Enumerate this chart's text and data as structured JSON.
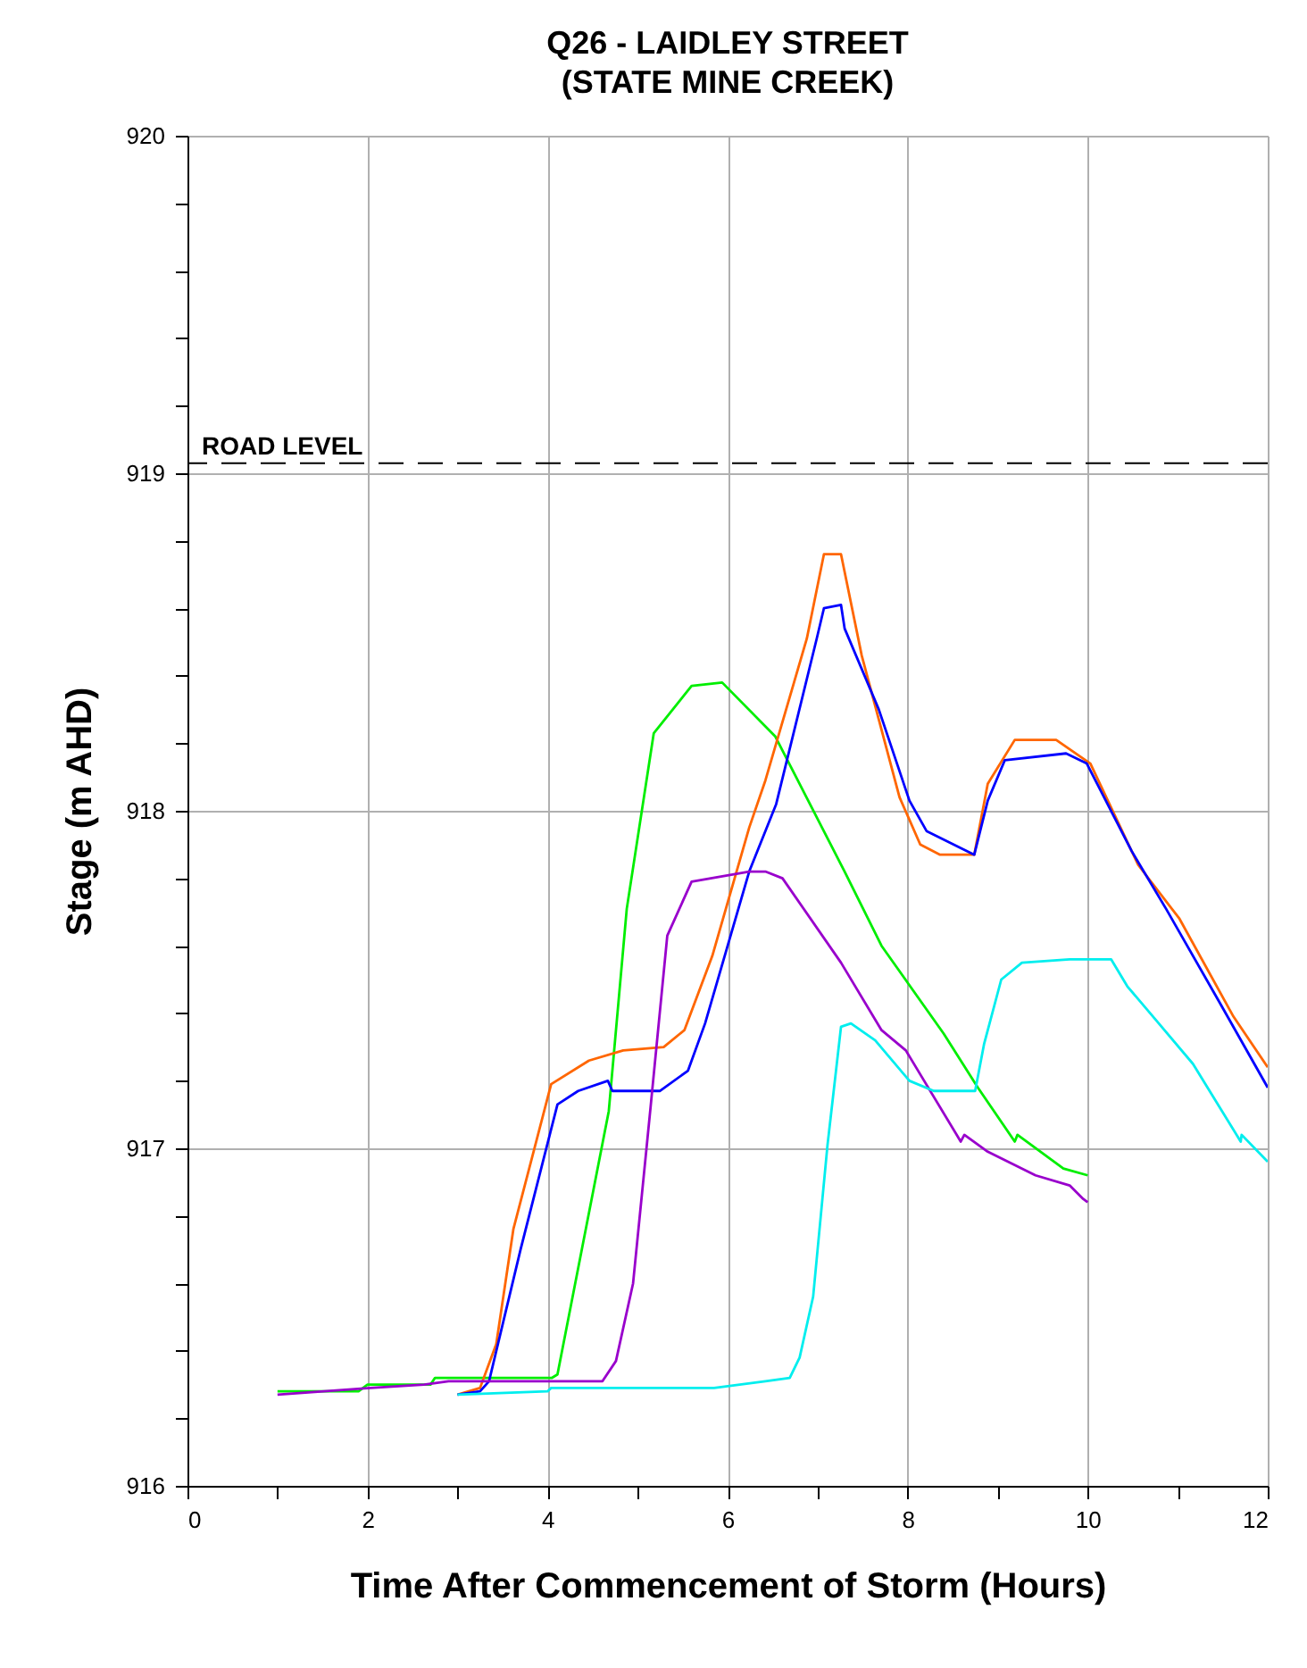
{
  "chart_data": {
    "type": "line",
    "title": "Q26 - LAIDLEY STREET\n(STATE MINE CREEK)",
    "xlabel": "Time After Commencement of Storm (Hours)",
    "ylabel": "Stage (m AHD)",
    "xlim": [
      0,
      12
    ],
    "ylim": [
      916,
      920
    ],
    "xticks": [
      0,
      {
        "value": 1,
        "label": null
      },
      2,
      {
        "value": 3,
        "label": null
      },
      4,
      {
        "value": 5,
        "label": null
      },
      6,
      {
        "value": 7,
        "label": null
      },
      8,
      {
        "value": 9,
        "label": null
      },
      10,
      {
        "value": 11,
        "label": null
      },
      12
    ],
    "yticks": [
      916,
      {
        "value": 916.2,
        "label": null
      },
      {
        "value": 916.4,
        "label": null
      },
      {
        "value": 916.6,
        "label": null
      },
      {
        "value": 916.8,
        "label": null
      },
      917,
      {
        "value": 917.2,
        "label": null
      },
      {
        "value": 917.4,
        "label": null
      },
      {
        "value": 917.6,
        "label": null
      },
      {
        "value": 917.8,
        "label": null
      },
      918,
      {
        "value": 918.2,
        "label": null
      },
      {
        "value": 918.4,
        "label": null
      },
      {
        "value": 918.6,
        "label": null
      },
      {
        "value": 918.8,
        "label": null
      },
      919,
      {
        "value": 919.2,
        "label": null
      },
      {
        "value": 919.4,
        "label": null
      },
      {
        "value": 919.6,
        "label": null
      },
      {
        "value": 919.8,
        "label": null
      },
      920
    ],
    "grid": true,
    "ref_lines": [
      {
        "axis": "y",
        "value": 919.03,
        "label": "ROAD LEVEL",
        "color": "#000000",
        "line_style": "dashed"
      }
    ],
    "series": [
      {
        "color": "#00ee00",
        "x": [
          1,
          1.9,
          2,
          2.7,
          2.75,
          4.05,
          4.11,
          4.68,
          4.88,
          5.18,
          5.6,
          5.94,
          6.53,
          7.3,
          7.71,
          8.4,
          8.78,
          9.19,
          9.22,
          9.73,
          10
        ],
        "values": [
          916.28,
          916.28,
          916.3,
          916.3,
          916.32,
          916.32,
          916.33,
          917.11,
          917.71,
          918.23,
          918.37,
          918.38,
          918.22,
          917.82,
          917.6,
          917.34,
          917.18,
          917.02,
          917.04,
          916.94,
          916.92
        ]
      },
      {
        "color": "#ff6600",
        "x": [
          3,
          3.25,
          3.43,
          3.62,
          4.04,
          4.46,
          4.84,
          5.29,
          5.52,
          5.83,
          6.24,
          6.42,
          6.88,
          7.07,
          7.26,
          7.49,
          7.91,
          8.14,
          8.36,
          8.74,
          8.89,
          9.19,
          9.65,
          10.03,
          10.56,
          11.02,
          11.62,
          12
        ],
        "values": [
          916.27,
          916.29,
          916.42,
          916.76,
          917.19,
          917.26,
          917.29,
          917.3,
          917.35,
          917.57,
          917.95,
          918.09,
          918.51,
          918.76,
          918.76,
          918.46,
          918.04,
          917.9,
          917.87,
          917.87,
          918.08,
          918.21,
          918.21,
          918.14,
          917.84,
          917.68,
          917.39,
          917.24
        ]
      },
      {
        "color": "#0000ff",
        "x": [
          3,
          3.25,
          3.35,
          3.7,
          4.11,
          4.34,
          4.67,
          4.72,
          5.25,
          5.56,
          5.75,
          6.24,
          6.54,
          6.99,
          7.07,
          7.26,
          7.3,
          7.68,
          8.02,
          8.21,
          8.74,
          8.89,
          9.08,
          9.76,
          9.99,
          10.49,
          10.87,
          11.47,
          12
        ],
        "values": [
          916.27,
          916.28,
          916.31,
          916.7,
          917.13,
          917.17,
          917.2,
          917.17,
          917.17,
          917.23,
          917.37,
          917.82,
          918.02,
          918.51,
          918.6,
          918.61,
          918.54,
          918.3,
          918.03,
          917.94,
          917.87,
          918.03,
          918.15,
          918.17,
          918.14,
          917.88,
          917.71,
          917.43,
          917.18
        ]
      },
      {
        "color": "#9900cc",
        "x": [
          1,
          2.03,
          2.63,
          2.9,
          4.61,
          4.76,
          4.95,
          5.14,
          5.33,
          5.6,
          6.24,
          6.42,
          6.61,
          7.26,
          7.71,
          7.98,
          8.59,
          8.63,
          8.89,
          9.42,
          9.8,
          9.95,
          10
        ],
        "values": [
          916.27,
          916.29,
          916.3,
          916.31,
          916.31,
          916.37,
          916.6,
          917.11,
          917.63,
          917.79,
          917.82,
          917.82,
          917.8,
          917.55,
          917.35,
          917.29,
          917.02,
          917.04,
          916.99,
          916.92,
          916.89,
          916.85,
          916.84
        ]
      },
      {
        "color": "#00eeee",
        "x": [
          3,
          4,
          4.04,
          5.85,
          6.42,
          6.69,
          6.8,
          6.95,
          7.11,
          7.26,
          7.37,
          7.64,
          8.02,
          8.29,
          8.75,
          8.85,
          9.04,
          9.27,
          9.8,
          10.26,
          10.44,
          10.79,
          11.17,
          11.7,
          11.71,
          12
        ],
        "values": [
          916.27,
          916.28,
          916.29,
          916.29,
          916.31,
          916.32,
          916.38,
          916.56,
          917.01,
          917.36,
          917.37,
          917.32,
          917.2,
          917.17,
          917.17,
          917.31,
          917.5,
          917.55,
          917.56,
          917.56,
          917.48,
          917.37,
          917.25,
          917.02,
          917.04,
          916.96
        ]
      }
    ]
  }
}
